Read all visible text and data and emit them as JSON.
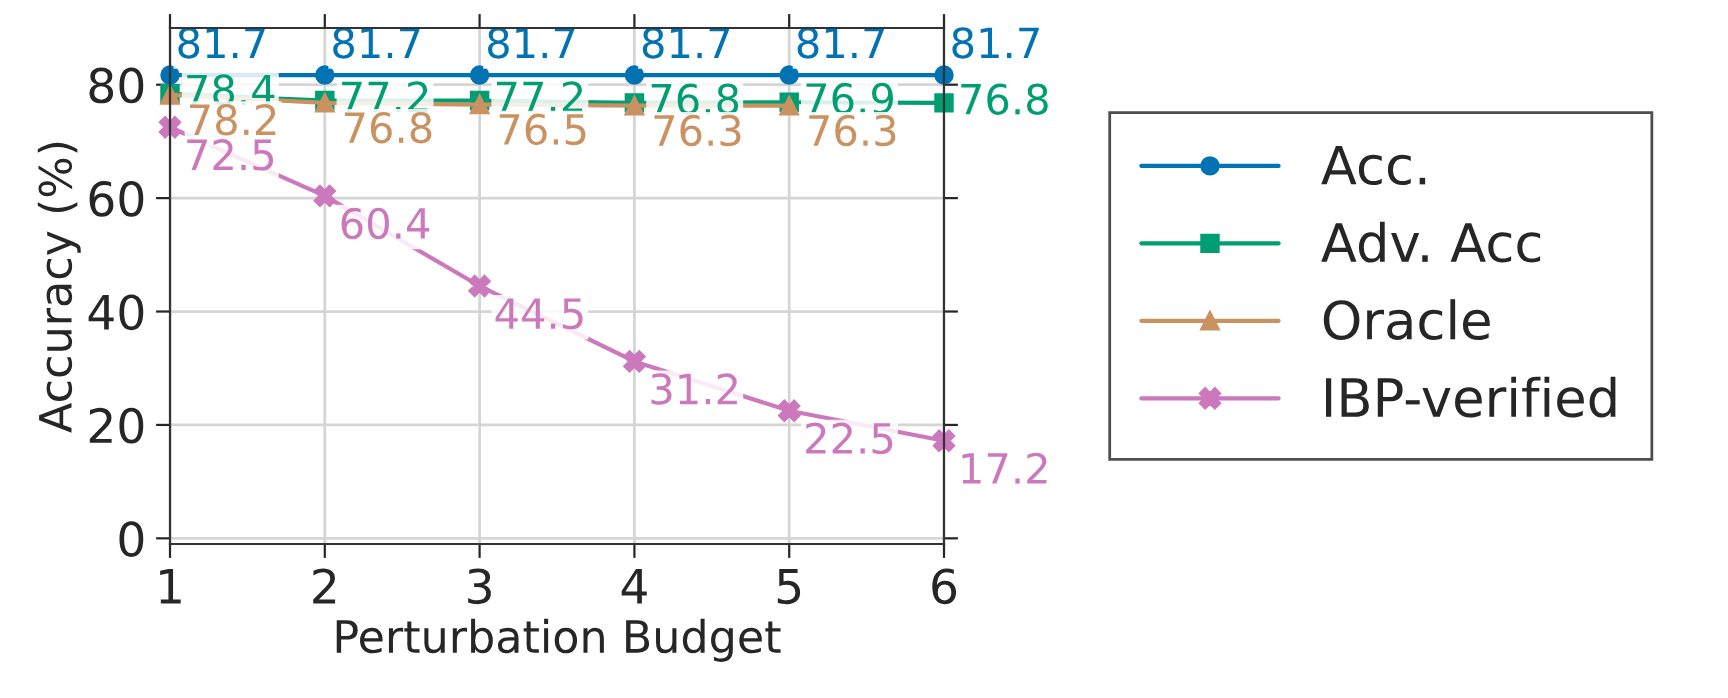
{
  "chart_data": {
    "type": "line",
    "xlabel": "Perturbation Budget",
    "ylabel": "Accuracy (%)",
    "x": [
      1,
      2,
      3,
      4,
      5,
      6
    ],
    "series": [
      {
        "name": "Acc.",
        "color": "#0173b2",
        "marker": "circle",
        "values": [
          81.7,
          81.7,
          81.7,
          81.7,
          81.7,
          81.7
        ]
      },
      {
        "name": "Adv. Acc",
        "color": "#029e73",
        "marker": "square",
        "values": [
          78.4,
          77.2,
          77.2,
          76.8,
          76.9,
          76.8
        ]
      },
      {
        "name": "Oracle",
        "color": "#ca9161",
        "marker": "triangle",
        "values": [
          78.2,
          76.8,
          76.5,
          76.3,
          76.3,
          null
        ]
      },
      {
        "name": "IBP-verified",
        "color": "#cc78bc",
        "marker": "cross",
        "values": [
          72.5,
          60.4,
          44.5,
          31.2,
          22.5,
          17.2
        ]
      }
    ],
    "data_labels": true,
    "xlim": [
      1,
      6
    ],
    "xticks": [
      1,
      2,
      3,
      4,
      5,
      6
    ],
    "ylim": [
      -1,
      90
    ],
    "yticks": [
      0,
      20,
      40,
      60,
      80
    ],
    "grid": true,
    "legend": "right",
    "line_style": "solid"
  }
}
